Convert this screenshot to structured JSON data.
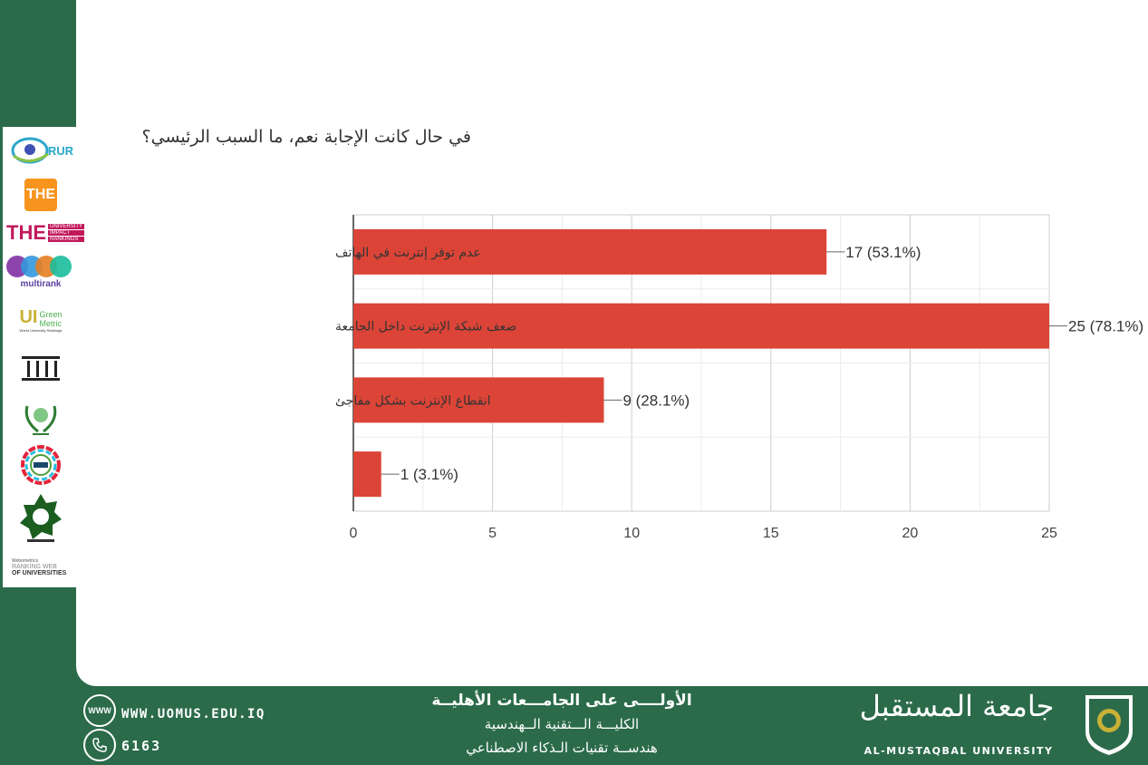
{
  "chart_data": {
    "type": "bar",
    "orientation": "horizontal",
    "title": "في حال كانت الإجابة نعم، ما السبب الرئيسي؟",
    "categories": [
      "عدم توفر إنترنت في الهاتف",
      "ضعف شبكة الإنترنت داخل الجامعة",
      "انقطاع الإنترنت بشكل مفاجئ",
      ""
    ],
    "values": [
      17,
      25,
      9,
      1
    ],
    "data_labels": [
      "17 (53.1%)",
      "25 (78.1%)",
      "9 (28.1%)",
      "1 (3.1%)"
    ],
    "x_ticks": [
      "0",
      "5",
      "10",
      "15",
      "20",
      "25"
    ],
    "xlim": [
      0,
      25
    ],
    "grid": true,
    "bar_color": "#db4437"
  },
  "logos": {
    "rur": "RUR",
    "the": "THE",
    "the_impact": "THE",
    "the_impact_sub": [
      "UNIVERSITY",
      "IMPACT",
      "RANKINGS"
    ],
    "multirank": "multirank",
    "greenmetric": "UI",
    "greenmetric_sub": [
      "Green",
      "Metric"
    ],
    "greenmetric_caption": "World University Rankings",
    "webometrics": [
      "Webometrics",
      "RANKING WEB",
      "OF UNIVERSITIES"
    ]
  },
  "footer": {
    "website": "WWW.UOMUS.EDU.IQ",
    "phone": "6163",
    "www_icon_text": "WWW",
    "line1": "الأولــــى على الجامـــعات الأهليــة",
    "line2": "الكليـــة الـــتقنية الــهندسية",
    "line3": "هندســة تقنيات الـذكاء الاصطناعي",
    "brand_arabic": "جامعة المستقبل",
    "brand_english": "AL-MUSTAQBAL UNIVERSITY"
  },
  "colors": {
    "footer_bg": "#2b6b4a",
    "bar": "#db4437"
  }
}
